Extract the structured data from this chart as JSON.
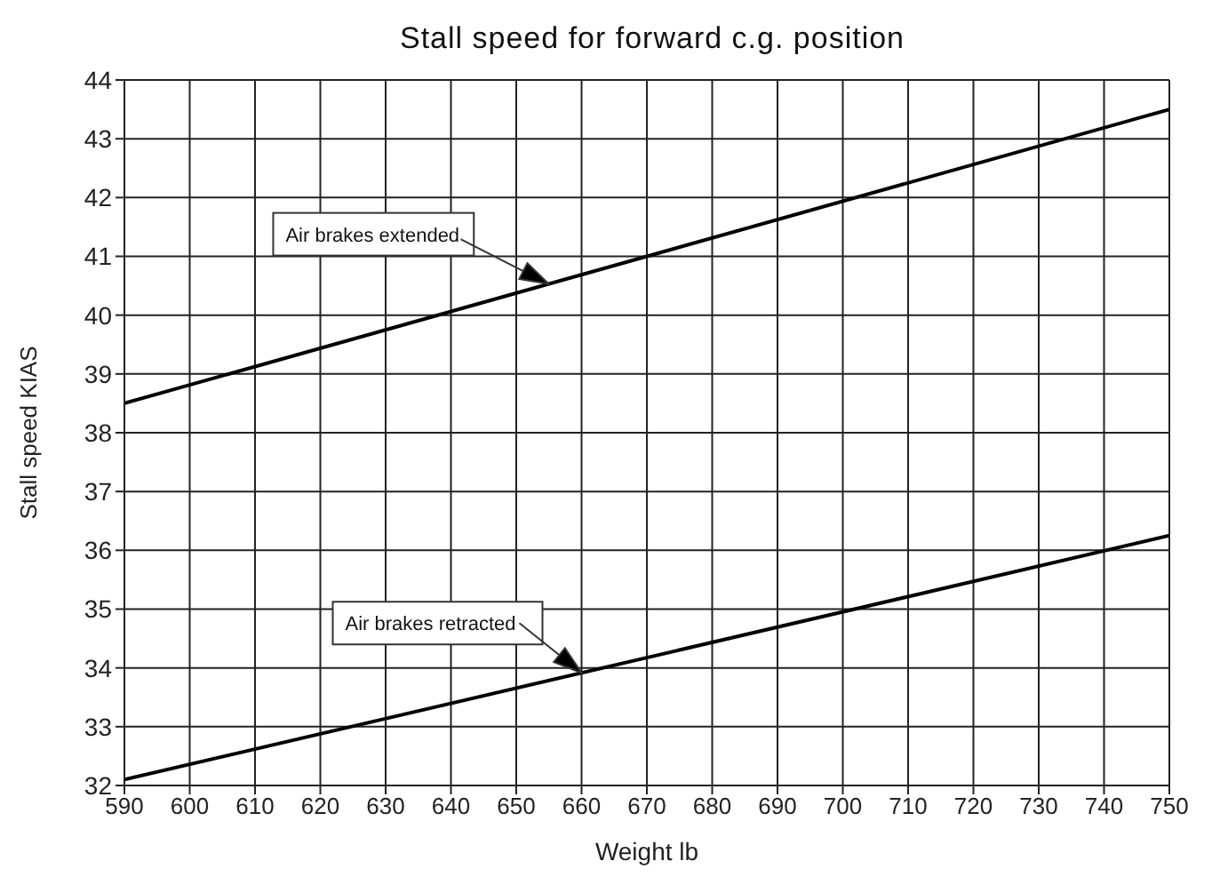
{
  "chart_data": {
    "type": "line",
    "title": "Stall speed for forward c.g. position",
    "xlabel": "Weight lb",
    "ylabel": "Stall speed KIAS",
    "x": [
      590,
      750
    ],
    "series": [
      {
        "color": "#000000",
        "values": [
          38.5,
          43.5
        ]
      },
      {
        "color": "#000000",
        "values": [
          32.1,
          36.25
        ]
      }
    ],
    "annotations": [
      "Air brakes extended",
      "Air brakes retracted"
    ],
    "xlim": [
      590,
      750
    ],
    "xticks": [
      590,
      600,
      610,
      620,
      630,
      640,
      650,
      660,
      670,
      680,
      690,
      700,
      710,
      720,
      730,
      740,
      750
    ],
    "ylim": [
      32,
      44
    ],
    "yticks": [
      32,
      33,
      34,
      35,
      36,
      37,
      38,
      39,
      40,
      41,
      42,
      43,
      44
    ],
    "grid": true,
    "legend": false,
    "marker": "none",
    "line_style": "solid"
  }
}
